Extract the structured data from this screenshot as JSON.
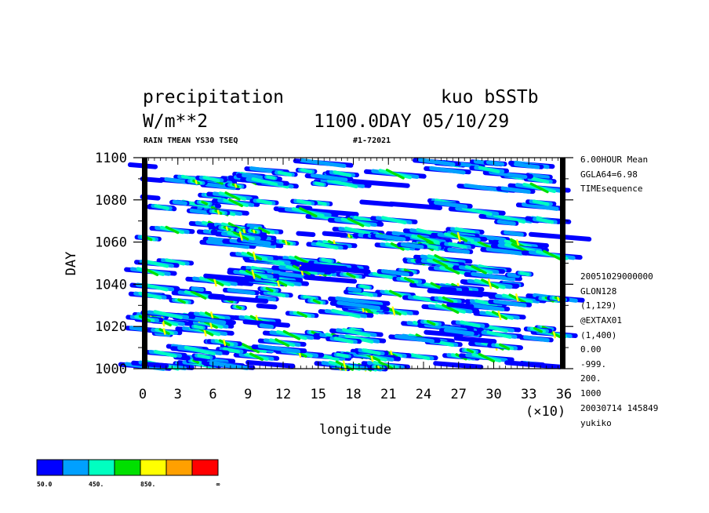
{
  "header": {
    "title_left": "precipitation",
    "title_right": "kuo bSSTb",
    "units": "W/m**2",
    "time_label": "1100.0DAY 05/10/29",
    "subtitle_left": "RAIN TMEAN YS30 TSEQ",
    "subtitle_right": "#1-72021"
  },
  "side_info": {
    "top": [
      "6.00HOUR Mean",
      "GGLA64=6.98",
      "TIMEsequence"
    ],
    "bottom": [
      "20051029000000",
      "GLON128",
      "(1,129)",
      "@EXTAX01",
      "(1,400)",
      "0.00",
      "-999.",
      "200.",
      "1000",
      "20030714 145849",
      "yukiko"
    ]
  },
  "legend": {
    "colors": [
      "#0000ff",
      "#00a0ff",
      "#00ffc0",
      "#00e000",
      "#ffff00",
      "#ffa000",
      "#ff0000"
    ],
    "labels": [
      "50.0",
      "450.",
      "850.",
      "∞"
    ]
  },
  "chart_data": {
    "type": "heatmap",
    "title": "precipitation",
    "xlabel": "longitude",
    "ylabel": "DAY",
    "x_multiplier": "(×10)",
    "xlim": [
      0,
      36
    ],
    "ylim": [
      1000,
      1100
    ],
    "x_ticks": [
      "0",
      "3",
      "6",
      "9",
      "12",
      "15",
      "18",
      "21",
      "24",
      "27",
      "30",
      "33",
      "36"
    ],
    "y_ticks": [
      "1000",
      "1020",
      "1040",
      "1060",
      "1080",
      "1100"
    ],
    "color_levels": [
      50,
      250,
      450,
      650,
      850,
      1050,
      1250
    ],
    "bands": [
      {
        "x0": 0.0,
        "x1": 36.0,
        "y0": 1098.0,
        "y1": 1096.0,
        "intensity": 0.35
      },
      {
        "x0": 0.0,
        "x1": 10.0,
        "y0": 1092.0,
        "y1": 1086.0,
        "intensity": 0.8
      },
      {
        "x0": 10.0,
        "x1": 18.0,
        "y0": 1094.0,
        "y1": 1087.0,
        "intensity": 0.45
      },
      {
        "x0": 18.0,
        "x1": 36.0,
        "y0": 1096.0,
        "y1": 1084.0,
        "intensity": 0.45
      },
      {
        "x0": 0.0,
        "x1": 8.0,
        "y0": 1082.0,
        "y1": 1074.0,
        "intensity": 0.7
      },
      {
        "x0": 8.0,
        "x1": 22.0,
        "y0": 1080.0,
        "y1": 1068.0,
        "intensity": 0.45
      },
      {
        "x0": 20.0,
        "x1": 36.0,
        "y0": 1080.0,
        "y1": 1068.0,
        "intensity": 0.45
      },
      {
        "x0": 0.0,
        "x1": 10.0,
        "y0": 1068.0,
        "y1": 1058.0,
        "intensity": 0.85
      },
      {
        "x0": 8.0,
        "x1": 20.0,
        "y0": 1066.0,
        "y1": 1048.0,
        "intensity": 0.95
      },
      {
        "x0": 16.0,
        "x1": 26.0,
        "y0": 1066.0,
        "y1": 1056.0,
        "intensity": 0.55
      },
      {
        "x0": 26.0,
        "x1": 36.0,
        "y0": 1066.0,
        "y1": 1054.0,
        "intensity": 0.8
      },
      {
        "x0": 0.0,
        "x1": 14.0,
        "y0": 1054.0,
        "y1": 1040.0,
        "intensity": 0.6
      },
      {
        "x0": 6.0,
        "x1": 18.0,
        "y0": 1048.0,
        "y1": 1040.0,
        "intensity": 0.9
      },
      {
        "x0": 14.0,
        "x1": 28.0,
        "y0": 1052.0,
        "y1": 1044.0,
        "intensity": 0.6
      },
      {
        "x0": 22.0,
        "x1": 36.0,
        "y0": 1054.0,
        "y1": 1038.0,
        "intensity": 0.75
      },
      {
        "x0": 0.0,
        "x1": 12.0,
        "y0": 1040.0,
        "y1": 1028.0,
        "intensity": 0.55
      },
      {
        "x0": 8.0,
        "x1": 22.0,
        "y0": 1038.0,
        "y1": 1022.0,
        "intensity": 0.9
      },
      {
        "x0": 18.0,
        "x1": 30.0,
        "y0": 1040.0,
        "y1": 1028.0,
        "intensity": 0.55
      },
      {
        "x0": 26.0,
        "x1": 36.0,
        "y0": 1034.0,
        "y1": 1010.0,
        "intensity": 0.95
      },
      {
        "x0": 0.0,
        "x1": 8.0,
        "y0": 1026.0,
        "y1": 1016.0,
        "intensity": 0.85
      },
      {
        "x0": 6.0,
        "x1": 16.0,
        "y0": 1022.0,
        "y1": 1004.0,
        "intensity": 0.7
      },
      {
        "x0": 14.0,
        "x1": 26.0,
        "y0": 1024.0,
        "y1": 1006.0,
        "intensity": 0.55
      },
      {
        "x0": 22.0,
        "x1": 34.0,
        "y0": 1022.0,
        "y1": 1004.0,
        "intensity": 0.6
      },
      {
        "x0": 0.0,
        "x1": 6.0,
        "y0": 1010.0,
        "y1": 1002.0,
        "intensity": 0.6
      },
      {
        "x0": 16.0,
        "x1": 22.0,
        "y0": 1008.0,
        "y1": 1000.0,
        "intensity": 0.8
      },
      {
        "x0": 0.0,
        "x1": 36.0,
        "y0": 1003.0,
        "y1": 1001.0,
        "intensity": 0.3
      }
    ]
  }
}
